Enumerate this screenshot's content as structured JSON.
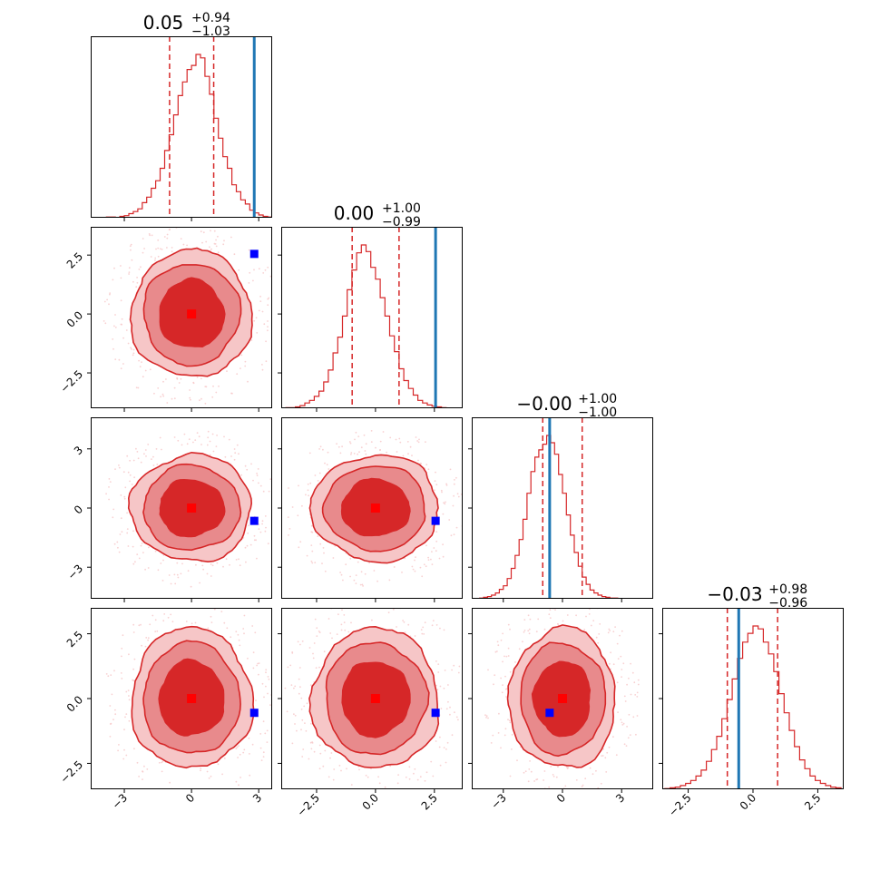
{
  "chart_data": {
    "type": "corner",
    "parameters": 4,
    "colors": {
      "samples": "#d62728",
      "fill_inner": "#d62728",
      "fill_mid": "#e88a8c",
      "fill_outer": "#f6c6c7",
      "truth_line": "#1f77b4",
      "truth_marker": "#0000ff",
      "median_marker": "#ff0000"
    },
    "titles": [
      {
        "median": "0.05",
        "plus": "+0.94",
        "minus": "−1.03"
      },
      {
        "median": "0.00",
        "plus": "+1.00",
        "minus": "−0.99"
      },
      {
        "median": "−0.00",
        "plus": "+1.00",
        "minus": "−1.00"
      },
      {
        "median": "−0.03",
        "plus": "+0.98",
        "minus": "−0.96"
      }
    ],
    "medians": [
      0.05,
      0.0,
      0.0,
      -0.03
    ],
    "quantiles_16_84": [
      [
        -0.98,
        0.99
      ],
      [
        -0.99,
        1.0
      ],
      [
        -1.0,
        1.0
      ],
      [
        -0.99,
        0.95
      ]
    ],
    "truths": [
      2.8,
      2.55,
      -0.65,
      -0.55
    ],
    "ranges": [
      [
        -4.5,
        3.6
      ],
      [
        -4.0,
        3.7
      ],
      [
        -4.6,
        4.6
      ],
      [
        -3.5,
        3.5
      ]
    ],
    "x_ticks": [
      {
        "values": [
          -3,
          0,
          3
        ],
        "labels": [
          "−3",
          "0",
          "3"
        ]
      },
      {
        "values": [
          -2.5,
          0,
          2.5
        ],
        "labels": [
          "−2.5",
          "0.0",
          "2.5"
        ]
      },
      {
        "values": [
          -3,
          0,
          3
        ],
        "labels": [
          "−3",
          "0",
          "3"
        ]
      },
      {
        "values": [
          -2.5,
          0,
          2.5
        ],
        "labels": [
          "−2.5",
          "0.0",
          "2.5"
        ]
      }
    ],
    "y_ticks": [
      null,
      {
        "values": [
          -2.5,
          0,
          2.5
        ],
        "labels": [
          "−2.5",
          "0.0",
          "2.5"
        ]
      },
      {
        "values": [
          -3,
          0,
          3
        ],
        "labels": [
          "−3",
          "0",
          "3"
        ]
      },
      {
        "values": [
          -2.5,
          0,
          2.5
        ],
        "labels": [
          "−2.5",
          "0.0",
          "2.5"
        ]
      }
    ],
    "histograms": [
      {
        "bin_start": -3.8,
        "bin_width": 0.2,
        "counts": [
          1,
          1,
          0,
          2,
          3,
          6,
          9,
          13,
          22,
          30,
          43,
          54,
          72,
          98,
          121,
          150,
          178,
          198,
          216,
          222,
          238,
          233,
          206,
          180,
          145,
          116,
          89,
          72,
          48,
          38,
          26,
          20,
          11,
          7,
          4,
          2,
          1,
          1
        ]
      },
      {
        "bin_start": -3.8,
        "bin_width": 0.2,
        "counts": [
          1,
          1,
          2,
          4,
          8,
          12,
          18,
          26,
          40,
          58,
          84,
          108,
          140,
          180,
          210,
          236,
          248,
          238,
          214,
          196,
          168,
          140,
          110,
          86,
          60,
          42,
          30,
          20,
          12,
          8,
          5,
          3,
          2,
          1
        ]
      },
      {
        "bin_start": -4.4,
        "bin_width": 0.2,
        "counts": [
          0,
          1,
          2,
          3,
          5,
          8,
          13,
          18,
          28,
          42,
          60,
          82,
          110,
          146,
          176,
          196,
          206,
          214,
          226,
          216,
          200,
          172,
          146,
          116,
          88,
          64,
          45,
          30,
          20,
          12,
          8,
          5,
          3,
          2,
          1,
          1,
          0,
          0,
          0,
          0,
          0,
          0,
          0,
          0
        ]
      },
      {
        "bin_start": -3.4,
        "bin_width": 0.2,
        "counts": [
          1,
          2,
          3,
          5,
          8,
          12,
          18,
          26,
          38,
          54,
          72,
          96,
          122,
          150,
          178,
          200,
          212,
          222,
          218,
          200,
          184,
          160,
          130,
          104,
          80,
          58,
          40,
          28,
          18,
          12,
          8,
          5,
          3,
          2
        ]
      }
    ],
    "contour_levels": [
      0.393,
      0.865,
      0.989
    ],
    "contour_radii_sigma": [
      1.0,
      2.0,
      3.0
    ]
  }
}
